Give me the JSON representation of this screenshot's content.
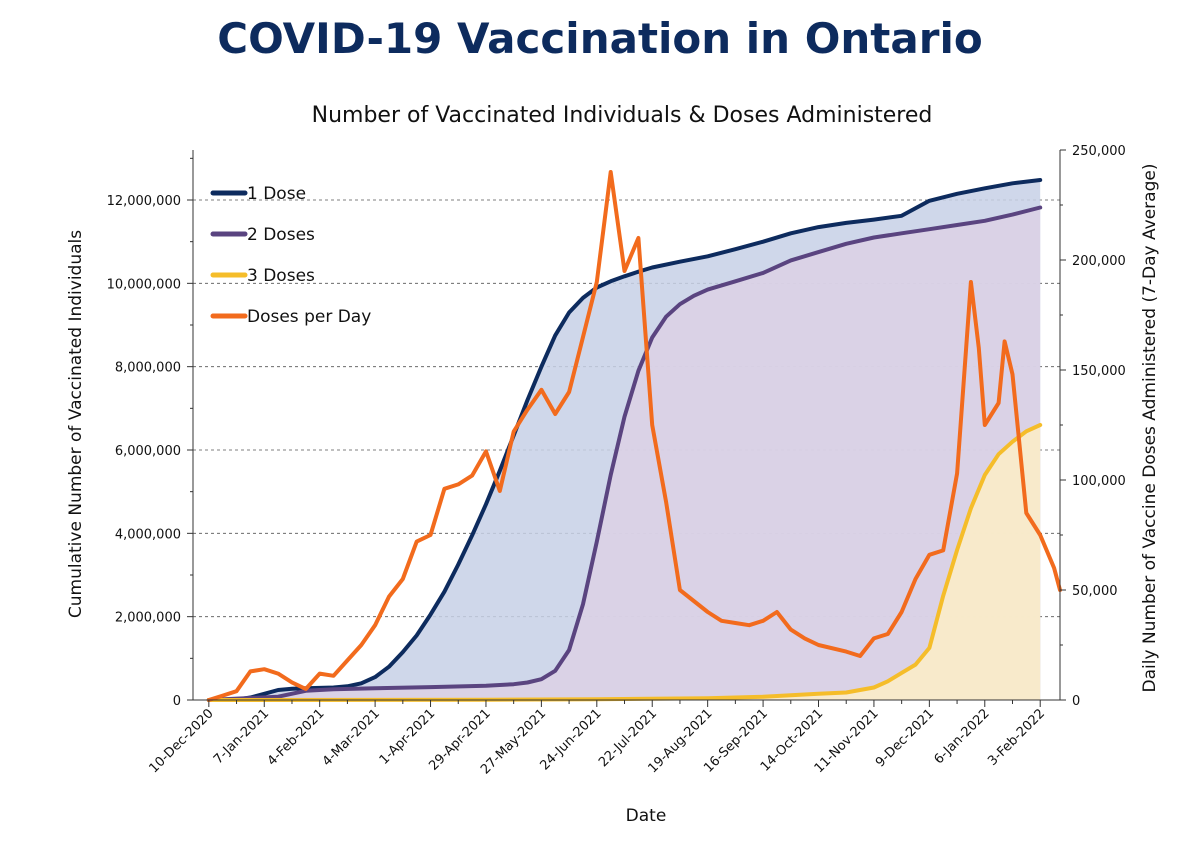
{
  "page": {
    "heading": "COVID-19 Vaccination in Ontario"
  },
  "chart_data": {
    "type": "line",
    "title": "Number of Vaccinated Individuals & Doses Administered",
    "xlabel": "Date",
    "ylabel": "Cumulative Number of Vaccinated Individuals",
    "y2label": "Daily Number of Vaccine Doses Administered (7-Day Average)",
    "ylim": [
      0,
      13200000
    ],
    "y2lim": [
      0,
      250000
    ],
    "xlim_days": [
      -8,
      430
    ],
    "yticks": [
      {
        "value": 0,
        "label": "0"
      },
      {
        "value": 2000000,
        "label": "2,000,000"
      },
      {
        "value": 4000000,
        "label": "4,000,000"
      },
      {
        "value": 6000000,
        "label": "6,000,000"
      },
      {
        "value": 8000000,
        "label": "8,000,000"
      },
      {
        "value": 10000000,
        "label": "10,000,000"
      },
      {
        "value": 12000000,
        "label": "12,000,000"
      }
    ],
    "y2ticks": [
      {
        "value": 0,
        "label": "0"
      },
      {
        "value": 50000,
        "label": "50,000"
      },
      {
        "value": 100000,
        "label": "100,000"
      },
      {
        "value": 150000,
        "label": "150,000"
      },
      {
        "value": 200000,
        "label": "200,000"
      },
      {
        "value": 250000,
        "label": "250,000"
      }
    ],
    "xticks": [
      {
        "day": 0,
        "label": "10-Dec-2020"
      },
      {
        "day": 28,
        "label": "7-Jan-2021"
      },
      {
        "day": 56,
        "label": "4-Feb-2021"
      },
      {
        "day": 84,
        "label": "4-Mar-2021"
      },
      {
        "day": 112,
        "label": "1-Apr-2021"
      },
      {
        "day": 140,
        "label": "29-Apr-2021"
      },
      {
        "day": 168,
        "label": "27-May-2021"
      },
      {
        "day": 196,
        "label": "24-Jun-2021"
      },
      {
        "day": 224,
        "label": "22-Jul-2021"
      },
      {
        "day": 252,
        "label": "19-Aug-2021"
      },
      {
        "day": 280,
        "label": "16-Sep-2021"
      },
      {
        "day": 308,
        "label": "14-Oct-2021"
      },
      {
        "day": 336,
        "label": "11-Nov-2021"
      },
      {
        "day": 364,
        "label": "9-Dec-2021"
      },
      {
        "day": 392,
        "label": "6-Jan-2022"
      },
      {
        "day": 420,
        "label": "3-Feb-2022"
      }
    ],
    "legend": [
      {
        "name": "1 Dose",
        "color": "#0d2b5e"
      },
      {
        "name": "2 Doses",
        "color": "#5a4480"
      },
      {
        "name": "3 Doses",
        "color": "#f5bd2a"
      },
      {
        "name": "Doses per Day",
        "color": "#f26b1d"
      }
    ],
    "series": [
      {
        "name": "1 Dose",
        "axis": "left",
        "color": "#0d2b5e",
        "fill": "#c7d0e6",
        "points": [
          [
            0,
            0
          ],
          [
            14,
            10000
          ],
          [
            21,
            60000
          ],
          [
            28,
            150000
          ],
          [
            35,
            240000
          ],
          [
            42,
            270000
          ],
          [
            49,
            280000
          ],
          [
            56,
            290000
          ],
          [
            63,
            300000
          ],
          [
            70,
            330000
          ],
          [
            77,
            400000
          ],
          [
            84,
            550000
          ],
          [
            91,
            800000
          ],
          [
            98,
            1150000
          ],
          [
            105,
            1550000
          ],
          [
            112,
            2050000
          ],
          [
            119,
            2600000
          ],
          [
            126,
            3250000
          ],
          [
            133,
            3950000
          ],
          [
            140,
            4700000
          ],
          [
            147,
            5500000
          ],
          [
            154,
            6350000
          ],
          [
            161,
            7200000
          ],
          [
            168,
            8000000
          ],
          [
            175,
            8750000
          ],
          [
            182,
            9300000
          ],
          [
            189,
            9650000
          ],
          [
            196,
            9900000
          ],
          [
            203,
            10050000
          ],
          [
            210,
            10170000
          ],
          [
            217,
            10280000
          ],
          [
            224,
            10380000
          ],
          [
            238,
            10520000
          ],
          [
            252,
            10650000
          ],
          [
            266,
            10820000
          ],
          [
            280,
            11000000
          ],
          [
            294,
            11200000
          ],
          [
            308,
            11350000
          ],
          [
            322,
            11450000
          ],
          [
            336,
            11530000
          ],
          [
            350,
            11620000
          ],
          [
            357,
            11800000
          ],
          [
            364,
            11980000
          ],
          [
            378,
            12150000
          ],
          [
            392,
            12280000
          ],
          [
            406,
            12400000
          ],
          [
            420,
            12480000
          ]
        ]
      },
      {
        "name": "2 Doses",
        "axis": "left",
        "color": "#5a4480",
        "fill": "#dcd1e5",
        "points": [
          [
            0,
            0
          ],
          [
            35,
            80000
          ],
          [
            49,
            220000
          ],
          [
            63,
            260000
          ],
          [
            84,
            280000
          ],
          [
            112,
            310000
          ],
          [
            140,
            340000
          ],
          [
            154,
            380000
          ],
          [
            161,
            420000
          ],
          [
            168,
            500000
          ],
          [
            175,
            700000
          ],
          [
            182,
            1200000
          ],
          [
            189,
            2300000
          ],
          [
            196,
            3800000
          ],
          [
            203,
            5400000
          ],
          [
            210,
            6800000
          ],
          [
            217,
            7900000
          ],
          [
            224,
            8700000
          ],
          [
            231,
            9200000
          ],
          [
            238,
            9500000
          ],
          [
            245,
            9700000
          ],
          [
            252,
            9850000
          ],
          [
            266,
            10050000
          ],
          [
            280,
            10250000
          ],
          [
            294,
            10550000
          ],
          [
            308,
            10750000
          ],
          [
            322,
            10950000
          ],
          [
            336,
            11100000
          ],
          [
            350,
            11200000
          ],
          [
            364,
            11300000
          ],
          [
            378,
            11400000
          ],
          [
            392,
            11500000
          ],
          [
            406,
            11650000
          ],
          [
            420,
            11820000
          ]
        ]
      },
      {
        "name": "3 Doses",
        "axis": "left",
        "color": "#f5bd2a",
        "fill": "#fdeec6",
        "points": [
          [
            0,
            0
          ],
          [
            140,
            5000
          ],
          [
            196,
            20000
          ],
          [
            252,
            40000
          ],
          [
            280,
            80000
          ],
          [
            308,
            150000
          ],
          [
            322,
            180000
          ],
          [
            336,
            300000
          ],
          [
            343,
            450000
          ],
          [
            350,
            650000
          ],
          [
            357,
            850000
          ],
          [
            364,
            1250000
          ],
          [
            371,
            2500000
          ],
          [
            378,
            3600000
          ],
          [
            385,
            4600000
          ],
          [
            392,
            5400000
          ],
          [
            399,
            5900000
          ],
          [
            406,
            6200000
          ],
          [
            413,
            6450000
          ],
          [
            420,
            6600000
          ]
        ]
      },
      {
        "name": "Doses per Day",
        "axis": "right",
        "color": "#f26b1d",
        "points": [
          [
            0,
            0
          ],
          [
            7,
            2000
          ],
          [
            14,
            4000
          ],
          [
            21,
            13000
          ],
          [
            28,
            14000
          ],
          [
            35,
            12000
          ],
          [
            42,
            8000
          ],
          [
            49,
            5000
          ],
          [
            56,
            12000
          ],
          [
            63,
            11000
          ],
          [
            70,
            18000
          ],
          [
            77,
            25000
          ],
          [
            84,
            34000
          ],
          [
            91,
            47000
          ],
          [
            98,
            55000
          ],
          [
            105,
            72000
          ],
          [
            112,
            75000
          ],
          [
            119,
            96000
          ],
          [
            126,
            98000
          ],
          [
            133,
            102000
          ],
          [
            140,
            113000
          ],
          [
            147,
            95000
          ],
          [
            154,
            122000
          ],
          [
            161,
            132000
          ],
          [
            168,
            141000
          ],
          [
            175,
            130000
          ],
          [
            182,
            140000
          ],
          [
            189,
            165000
          ],
          [
            196,
            190000
          ],
          [
            203,
            240000
          ],
          [
            210,
            195000
          ],
          [
            217,
            210000
          ],
          [
            224,
            125000
          ],
          [
            231,
            90000
          ],
          [
            238,
            50000
          ],
          [
            245,
            45000
          ],
          [
            252,
            40000
          ],
          [
            259,
            36000
          ],
          [
            266,
            35000
          ],
          [
            273,
            34000
          ],
          [
            280,
            36000
          ],
          [
            287,
            40000
          ],
          [
            294,
            32000
          ],
          [
            301,
            28000
          ],
          [
            308,
            25000
          ],
          [
            322,
            22000
          ],
          [
            329,
            20000
          ],
          [
            336,
            28000
          ],
          [
            343,
            30000
          ],
          [
            350,
            40000
          ],
          [
            357,
            55000
          ],
          [
            364,
            66000
          ],
          [
            371,
            68000
          ],
          [
            378,
            103000
          ],
          [
            385,
            190000
          ],
          [
            389,
            160000
          ],
          [
            392,
            125000
          ],
          [
            399,
            135000
          ],
          [
            402,
            163000
          ],
          [
            406,
            148000
          ],
          [
            413,
            85000
          ],
          [
            420,
            75000
          ],
          [
            427,
            60000
          ],
          [
            430,
            50000
          ]
        ]
      }
    ]
  }
}
